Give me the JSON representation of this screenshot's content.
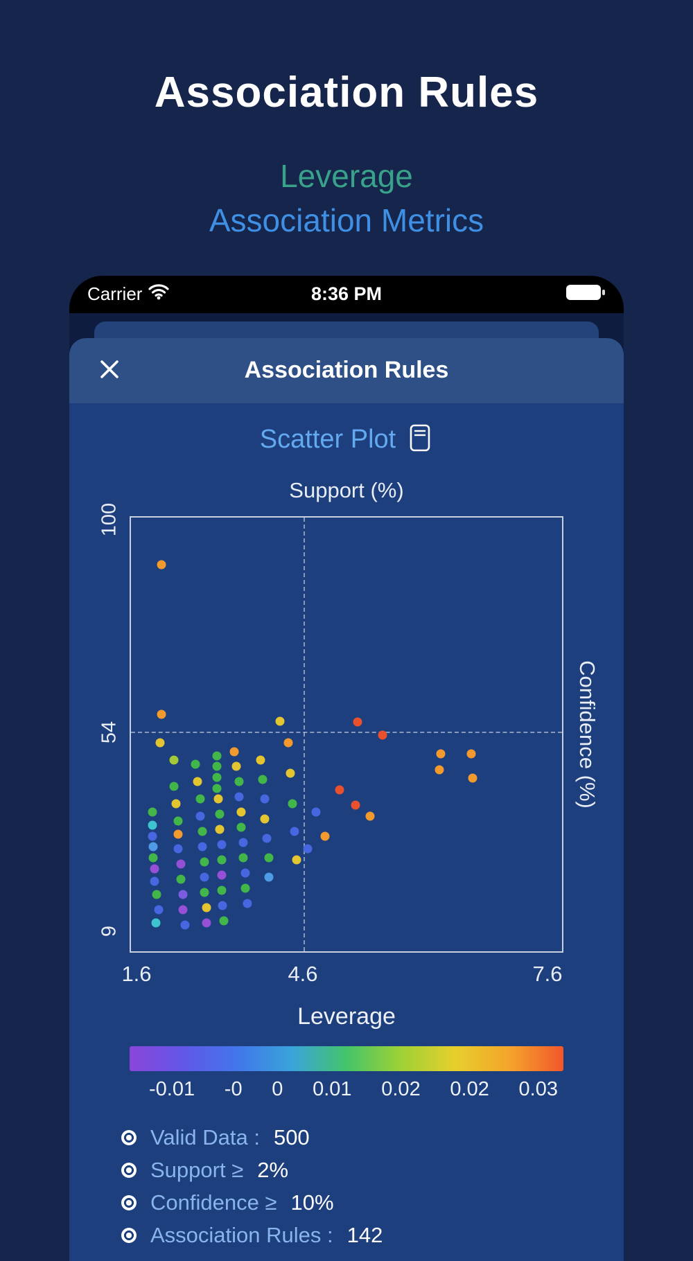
{
  "page": {
    "title": "Association Rules",
    "subtitle_leverage": "Leverage",
    "subtitle_metrics": "Association Metrics"
  },
  "phone": {
    "status_bar": {
      "carrier": "Carrier",
      "time": "8:36 PM"
    },
    "modal": {
      "title": "Association Rules"
    },
    "stats": [
      {
        "label": "Valid Data :",
        "value": "500"
      },
      {
        "label": "Support ≥",
        "value": "2%"
      },
      {
        "label": "Confidence ≥",
        "value": "10%"
      },
      {
        "label": "Association Rules :",
        "value": "142"
      }
    ]
  },
  "colors": {
    "page_background": "#15254b",
    "modal_body": "#1d3f7d",
    "modal_header": "#2f4f87",
    "accent_teal": "#39a28a",
    "accent_blue": "#3f8fe4",
    "chart_title_blue": "#63a9ef",
    "stat_label_blue": "#8ab5ec"
  },
  "chart_data": {
    "type": "scatter",
    "title": "Scatter Plot",
    "top_axis_label": "Support (%)",
    "right_axis_label": "Confidence (%)",
    "colorbar_label": "Leverage",
    "y_ticks": [
      "100",
      "54",
      "9"
    ],
    "x_ticks": [
      "1.6",
      "4.6",
      "7.6"
    ],
    "x_range": [
      1.6,
      7.6
    ],
    "y_range": [
      9,
      100
    ],
    "colorbar_ticks": [
      "-0.01",
      "-0",
      "0",
      "0.01",
      "0.02",
      "0.02",
      "0.03"
    ],
    "colorbar_range": [
      -0.01,
      0.03
    ],
    "colorbar_gradient": [
      "#8b46d9",
      "#6257e8",
      "#4177ea",
      "#3aa4d9",
      "#44c46a",
      "#9ed136",
      "#e6cf2d",
      "#f4a42c",
      "#f2572b"
    ],
    "threshold_lines": {
      "vertical_x_pct": 40,
      "horizontal_y_pct": 49.5
    },
    "grid": "dashed-crosshair",
    "legend_position": "colorbar-bottom",
    "palette": {
      "pu": "#9550d6",
      "vi": "#7a5ce0",
      "bl": "#4667e0",
      "lb": "#4f9be8",
      "cy": "#3ec4cf",
      "gr": "#43b649",
      "yg": "#a3c939",
      "ye": "#e3c531",
      "or": "#f29a2e",
      "re": "#e8502e"
    },
    "points_pct": [
      [
        7,
        11,
        "or"
      ],
      [
        7,
        45.5,
        "or"
      ],
      [
        6.8,
        52,
        "ye"
      ],
      [
        10,
        56,
        "yg"
      ],
      [
        5,
        68,
        "gr"
      ],
      [
        5,
        71,
        "cy"
      ],
      [
        5,
        73.5,
        "bl"
      ],
      [
        5.2,
        76,
        "lb"
      ],
      [
        5.2,
        78.5,
        "gr"
      ],
      [
        5.5,
        81,
        "pu"
      ],
      [
        5.5,
        84,
        "bl"
      ],
      [
        6,
        87,
        "gr"
      ],
      [
        6.5,
        90.5,
        "bl"
      ],
      [
        5.8,
        93.5,
        "cy"
      ],
      [
        10,
        62,
        "gr"
      ],
      [
        10.5,
        66,
        "ye"
      ],
      [
        11,
        70,
        "gr"
      ],
      [
        11,
        73,
        "or"
      ],
      [
        11,
        76.5,
        "bl"
      ],
      [
        11.5,
        80,
        "pu"
      ],
      [
        11.5,
        83.5,
        "gr"
      ],
      [
        12,
        87,
        "vi"
      ],
      [
        12,
        90.5,
        "pu"
      ],
      [
        12.5,
        94,
        "bl"
      ],
      [
        15,
        57,
        "gr"
      ],
      [
        15.5,
        61,
        "ye"
      ],
      [
        16,
        65,
        "gr"
      ],
      [
        16,
        69,
        "bl"
      ],
      [
        16.5,
        72.5,
        "gr"
      ],
      [
        16.5,
        76,
        "bl"
      ],
      [
        17,
        79.5,
        "gr"
      ],
      [
        17,
        83,
        "bl"
      ],
      [
        17,
        86.5,
        "gr"
      ],
      [
        17.5,
        90,
        "ye"
      ],
      [
        17.5,
        93.5,
        "pu"
      ],
      [
        20,
        55,
        "gr"
      ],
      [
        20,
        57.5,
        "gr"
      ],
      [
        20,
        60,
        "gr"
      ],
      [
        20,
        62.5,
        "gr"
      ],
      [
        20.2,
        65,
        "ye"
      ],
      [
        20.5,
        68.5,
        "gr"
      ],
      [
        20.5,
        72,
        "ye"
      ],
      [
        21,
        75.5,
        "bl"
      ],
      [
        21,
        79,
        "gr"
      ],
      [
        21,
        82.5,
        "pu"
      ],
      [
        21,
        86,
        "gr"
      ],
      [
        21.2,
        89.5,
        "bl"
      ],
      [
        21.5,
        93,
        "gr"
      ],
      [
        24,
        54,
        "or"
      ],
      [
        24.5,
        57.5,
        "ye"
      ],
      [
        25,
        61,
        "gr"
      ],
      [
        25,
        64.5,
        "bl"
      ],
      [
        25.5,
        68,
        "ye"
      ],
      [
        25.5,
        71.5,
        "gr"
      ],
      [
        26,
        75,
        "bl"
      ],
      [
        26,
        78.5,
        "gr"
      ],
      [
        26.5,
        82,
        "bl"
      ],
      [
        26.5,
        85.5,
        "gr"
      ],
      [
        27,
        89,
        "bl"
      ],
      [
        30,
        56,
        "ye"
      ],
      [
        30.5,
        60.5,
        "gr"
      ],
      [
        31,
        65,
        "bl"
      ],
      [
        31,
        69.5,
        "ye"
      ],
      [
        31.5,
        74,
        "bl"
      ],
      [
        32,
        78.5,
        "gr"
      ],
      [
        32,
        83,
        "lb"
      ],
      [
        37,
        59,
        "ye"
      ],
      [
        37.5,
        66,
        "gr"
      ],
      [
        38,
        72.5,
        "bl"
      ],
      [
        38.5,
        79,
        "ye"
      ],
      [
        34.5,
        47,
        "ye"
      ],
      [
        36.5,
        52,
        "or"
      ],
      [
        43,
        68,
        "bl"
      ],
      [
        45,
        73.5,
        "or"
      ],
      [
        41,
        76.5,
        "bl"
      ],
      [
        52.5,
        47.2,
        "re"
      ],
      [
        58.3,
        50.2,
        "re"
      ],
      [
        52.1,
        66.3,
        "re"
      ],
      [
        48.4,
        62.8,
        "re"
      ],
      [
        55.5,
        69,
        "or"
      ],
      [
        71.8,
        54.6,
        "or"
      ],
      [
        71.5,
        58.2,
        "or"
      ],
      [
        79,
        54.6,
        "or"
      ],
      [
        79.3,
        60.2,
        "or"
      ]
    ]
  }
}
